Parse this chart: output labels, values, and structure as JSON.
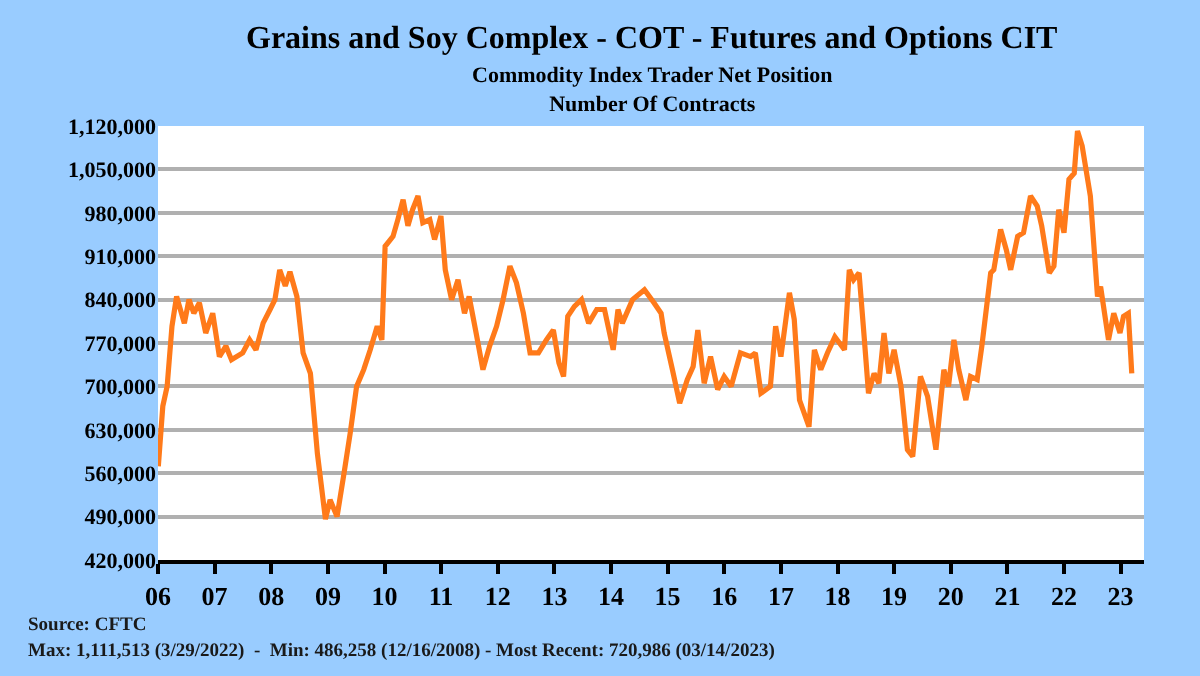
{
  "chart_data": {
    "type": "line",
    "title": "Grains and Soy Complex - COT - Futures and Options CIT",
    "subtitle": "Commodity Index Trader Net Position\nNumber Of Contracts",
    "annotations": [
      "Source: CFTC",
      "Max: 1,111,513 (3/29/2022)  -  Min: 486,258 (12/16/2008) - Most Recent: 720,986 (03/14/2023)"
    ],
    "x": [
      "2006-01-03",
      "2006-02-01",
      "2006-03-01",
      "2006-04-01",
      "2006-05-01",
      "2006-06-20",
      "2006-07-20",
      "2006-08-20",
      "2006-09-25",
      "2006-11-05",
      "2006-12-20",
      "2007-02-01",
      "2007-03-15",
      "2007-04-20",
      "2007-07-01",
      "2007-08-15",
      "2007-09-25",
      "2007-11-10",
      "2007-12-25",
      "2008-01-25",
      "2008-02-25",
      "2008-04-01",
      "2008-05-01",
      "2008-06-15",
      "2008-07-25",
      "2008-09-10",
      "2008-10-25",
      "2008-12-16",
      "2009-01-15",
      "2009-03-01",
      "2009-04-15",
      "2009-05-25",
      "2009-07-05",
      "2009-08-20",
      "2009-10-01",
      "2009-11-15",
      "2009-12-15",
      "2010-01-05",
      "2010-02-25",
      "2010-03-28",
      "2010-05-01",
      "2010-06-01",
      "2010-07-01",
      "2010-08-05",
      "2010-09-05",
      "2010-10-20",
      "2010-11-20",
      "2010-12-31",
      "2011-01-28",
      "2011-03-10",
      "2011-04-20",
      "2011-06-01",
      "2011-07-01",
      "2011-08-15",
      "2011-09-28",
      "2011-11-10",
      "2011-12-25",
      "2012-02-05",
      "2012-03-20",
      "2012-05-01",
      "2012-06-15",
      "2012-07-28",
      "2012-09-20",
      "2012-11-10",
      "2012-12-25",
      "2013-01-30",
      "2013-03-01",
      "2013-03-28",
      "2013-05-10",
      "2013-06-25",
      "2013-08-10",
      "2013-10-01",
      "2013-11-20",
      "2014-01-15",
      "2014-02-15",
      "2014-03-15",
      "2014-05-20",
      "2014-08-05",
      "2014-10-05",
      "2014-11-20",
      "2014-12-10",
      "2015-02-01",
      "2015-03-20",
      "2015-05-08",
      "2015-06-15",
      "2015-07-15",
      "2015-08-25",
      "2015-10-05",
      "2015-11-20",
      "2016-01-01",
      "2016-02-15",
      "2016-04-15",
      "2016-06-20",
      "2016-07-20",
      "2016-08-25",
      "2016-10-25",
      "2016-11-28",
      "2017-01-01",
      "2017-02-25",
      "2017-03-28",
      "2017-05-01",
      "2017-07-01",
      "2017-08-05",
      "2017-09-15",
      "2017-10-28",
      "2017-12-15",
      "2018-02-15",
      "2018-03-18",
      "2018-04-15",
      "2018-05-20",
      "2018-06-20",
      "2018-07-20",
      "2018-08-25",
      "2018-09-25",
      "2018-10-28",
      "2018-11-28",
      "2019-01-01",
      "2019-02-15",
      "2019-03-28",
      "2019-05-01",
      "2019-06-20",
      "2019-08-05",
      "2019-09-28",
      "2019-11-18",
      "2019-12-18",
      "2020-01-22",
      "2020-02-22",
      "2020-04-08",
      "2020-05-08",
      "2020-06-20",
      "2020-07-20",
      "2020-09-15",
      "2020-10-05",
      "2020-11-18",
      "2020-12-25",
      "2021-01-22",
      "2021-03-08",
      "2021-04-15",
      "2021-05-30",
      "2021-07-12",
      "2021-08-10",
      "2021-09-28",
      "2021-10-28",
      "2021-11-28",
      "2022-01-01",
      "2022-02-02",
      "2022-03-08",
      "2022-03-29",
      "2022-04-28",
      "2022-06-20",
      "2022-08-05",
      "2022-08-25",
      "2022-10-15",
      "2022-11-18",
      "2022-12-28",
      "2023-01-20",
      "2023-02-20",
      "2023-03-14"
    ],
    "series": [
      {
        "color": "#ff7a1a",
        "values": [
          571000,
          668000,
          700000,
          797000,
          845000,
          802000,
          840000,
          818000,
          835000,
          786000,
          818000,
          748000,
          765000,
          743000,
          754000,
          775000,
          759000,
          802000,
          824000,
          840000,
          888000,
          862000,
          885000,
          845000,
          754000,
          721000,
          592000,
          486000,
          517000,
          490000,
          560000,
          625000,
          700000,
          727000,
          759000,
          797000,
          775000,
          926000,
          942000,
          969000,
          1001000,
          959000,
          985000,
          1007000,
          964000,
          969000,
          937000,
          975000,
          888000,
          840000,
          872000,
          818000,
          845000,
          786000,
          727000,
          765000,
          797000,
          840000,
          894000,
          867000,
          818000,
          754000,
          754000,
          775000,
          791000,
          738000,
          716000,
          813000,
          829000,
          840000,
          802000,
          824000,
          824000,
          759000,
          824000,
          802000,
          840000,
          856000,
          835000,
          818000,
          786000,
          727000,
          673000,
          711000,
          732000,
          791000,
          705000,
          748000,
          695000,
          716000,
          700000,
          754000,
          748000,
          754000,
          689000,
          700000,
          797000,
          748000,
          851000,
          808000,
          678000,
          635000,
          759000,
          727000,
          754000,
          780000,
          759000,
          888000,
          872000,
          883000,
          786000,
          689000,
          721000,
          705000,
          786000,
          721000,
          759000,
          700000,
          598000,
          587000,
          716000,
          684000,
          598000,
          727000,
          700000,
          775000,
          727000,
          678000,
          716000,
          711000,
          765000,
          883000,
          888000,
          953000,
          920000,
          888000,
          942000,
          948000,
          1007000,
          991000,
          959000,
          883000,
          894000,
          985000,
          948000,
          1034000,
          1044000,
          1112000,
          1088000,
          1007000,
          845000,
          861000,
          775000,
          818000,
          786000,
          813000,
          818000,
          721000
        ]
      }
    ],
    "xlim": [
      "2006-01-01",
      "2023-06-01"
    ],
    "xticks": [
      {
        "value": "2006-01-01",
        "label": "06"
      },
      {
        "value": "2007-01-01",
        "label": "07"
      },
      {
        "value": "2008-01-01",
        "label": "08"
      },
      {
        "value": "2009-01-01",
        "label": "09"
      },
      {
        "value": "2010-01-01",
        "label": "10"
      },
      {
        "value": "2011-01-01",
        "label": "11"
      },
      {
        "value": "2012-01-01",
        "label": "12"
      },
      {
        "value": "2013-01-01",
        "label": "13"
      },
      {
        "value": "2014-01-01",
        "label": "14"
      },
      {
        "value": "2015-01-01",
        "label": "15"
      },
      {
        "value": "2016-01-01",
        "label": "16"
      },
      {
        "value": "2017-01-01",
        "label": "17"
      },
      {
        "value": "2018-01-01",
        "label": "18"
      },
      {
        "value": "2019-01-01",
        "label": "19"
      },
      {
        "value": "2020-01-01",
        "label": "20"
      },
      {
        "value": "2021-01-01",
        "label": "21"
      },
      {
        "value": "2022-01-01",
        "label": "22"
      },
      {
        "value": "2023-01-01",
        "label": "23"
      }
    ],
    "ylim": [
      420000,
      1120000
    ],
    "yticks": [
      {
        "value": 420000,
        "label": "420,000"
      },
      {
        "value": 490000,
        "label": "490,000"
      },
      {
        "value": 560000,
        "label": "560,000"
      },
      {
        "value": 630000,
        "label": "630,000"
      },
      {
        "value": 700000,
        "label": "700,000"
      },
      {
        "value": 770000,
        "label": "770,000"
      },
      {
        "value": 840000,
        "label": "840,000"
      },
      {
        "value": 910000,
        "label": "910,000"
      },
      {
        "value": 980000,
        "label": "980,000"
      },
      {
        "value": 1050000,
        "label": "1,050,000"
      },
      {
        "value": 1120000,
        "label": "1,120,000"
      }
    ],
    "grid": "y",
    "marker": "none",
    "line_style": "solid"
  }
}
